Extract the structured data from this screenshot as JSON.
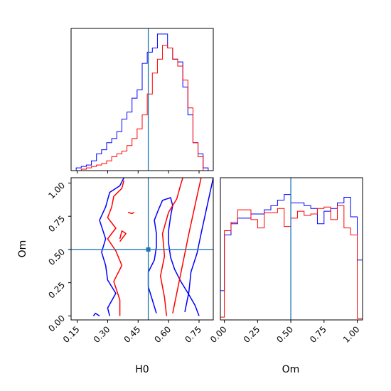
{
  "chart_data": {
    "type": "corner",
    "parameters": [
      "H0",
      "Om"
    ],
    "truth": {
      "H0": 0.5,
      "Om": 0.5
    },
    "truth_color": "#1f77b4",
    "series_colors": {
      "blue": "#0000ff",
      "red": "#ff0000"
    },
    "xlabels": {
      "H0": "H0",
      "Om": "Om"
    },
    "ylabel": "Om",
    "ticks": {
      "H0": [
        "0.15",
        "0.30",
        "0.45",
        "0.60",
        "0.75"
      ],
      "Om": [
        "0.00",
        "0.25",
        "0.50",
        "0.75",
        "1.00"
      ]
    },
    "ranges": {
      "H0": [
        0.12,
        0.82
      ],
      "Om": [
        -0.03,
        1.04
      ]
    },
    "histograms": {
      "H0": {
        "bin_edges": [
          0.12,
          0.145,
          0.17,
          0.195,
          0.22,
          0.245,
          0.27,
          0.295,
          0.32,
          0.345,
          0.37,
          0.395,
          0.42,
          0.445,
          0.47,
          0.495,
          0.52,
          0.545,
          0.57,
          0.595,
          0.62,
          0.645,
          0.67,
          0.695,
          0.72,
          0.745,
          0.77,
          0.795,
          0.82
        ],
        "blue": [
          0,
          0.02,
          0.03,
          0.04,
          0.07,
          0.12,
          0.15,
          0.2,
          0.23,
          0.28,
          0.37,
          0.42,
          0.52,
          0.58,
          0.77,
          0.85,
          0.88,
          0.98,
          0.98,
          0.88,
          0.8,
          0.78,
          0.6,
          0.4,
          0.2,
          0.12,
          0.02,
          0
        ],
        "red": [
          0,
          0,
          0.01,
          0.02,
          0.03,
          0.04,
          0.05,
          0.07,
          0.1,
          0.12,
          0.14,
          0.18,
          0.23,
          0.3,
          0.4,
          0.55,
          0.7,
          0.8,
          0.9,
          0.88,
          0.8,
          0.75,
          0.65,
          0.45,
          0.2,
          0.1,
          0,
          0
        ]
      },
      "Om": {
        "bin_edges": [
          -0.05,
          0.0,
          0.05,
          0.1,
          0.15,
          0.2,
          0.25,
          0.3,
          0.35,
          0.4,
          0.45,
          0.5,
          0.55,
          0.6,
          0.65,
          0.7,
          0.75,
          0.8,
          0.85,
          0.9,
          0.95,
          1.0,
          1.05
        ],
        "blue": [
          0.21,
          0.61,
          0.69,
          0.73,
          0.73,
          0.76,
          0.76,
          0.79,
          0.82,
          0.86,
          0.9,
          0.84,
          0.84,
          0.82,
          0.8,
          0.69,
          0.78,
          0.8,
          0.84,
          0.88,
          0.74,
          0.43
        ],
        "red": [
          0.02,
          0.64,
          0.7,
          0.79,
          0.79,
          0.72,
          0.66,
          0.77,
          0.77,
          0.8,
          0.67,
          0.73,
          0.78,
          0.75,
          0.76,
          0.8,
          0.81,
          0.72,
          0.82,
          0.66,
          0.61,
          0.01
        ]
      }
    },
    "contours": {
      "blue": [
        [
          [
            0.31,
            0.0
          ],
          [
            0.3,
            0.06
          ],
          [
            0.34,
            0.17
          ],
          [
            0.3,
            0.27
          ],
          [
            0.29,
            0.38
          ],
          [
            0.27,
            0.48
          ],
          [
            0.29,
            0.58
          ],
          [
            0.26,
            0.72
          ],
          [
            0.29,
            0.82
          ],
          [
            0.31,
            0.93
          ],
          [
            0.36,
            0.98
          ],
          [
            0.38,
            1.04
          ]
        ],
        [
          [
            0.54,
            0.02
          ],
          [
            0.52,
            0.12
          ],
          [
            0.5,
            0.22
          ],
          [
            0.5,
            0.33
          ],
          [
            0.53,
            0.42
          ],
          [
            0.54,
            0.52
          ],
          [
            0.54,
            0.62
          ],
          [
            0.53,
            0.72
          ],
          [
            0.55,
            0.8
          ],
          [
            0.57,
            0.87
          ],
          [
            0.61,
            0.89
          ],
          [
            0.62,
            0.83
          ],
          [
            0.61,
            0.75
          ],
          [
            0.6,
            0.64
          ],
          [
            0.6,
            0.55
          ],
          [
            0.61,
            0.44
          ],
          [
            0.63,
            0.35
          ],
          [
            0.66,
            0.26
          ],
          [
            0.7,
            0.16
          ],
          [
            0.73,
            0.08
          ],
          [
            0.75,
            0.0
          ]
        ],
        [
          [
            0.68,
            0.03
          ],
          [
            0.7,
            0.18
          ],
          [
            0.71,
            0.33
          ],
          [
            0.74,
            0.47
          ],
          [
            0.76,
            0.62
          ],
          [
            0.78,
            0.76
          ],
          [
            0.8,
            0.9
          ],
          [
            0.82,
            1.04
          ]
        ],
        [
          [
            0.23,
            0.0
          ],
          [
            0.24,
            0.02
          ],
          [
            0.26,
            0.0
          ]
        ]
      ],
      "red": [
        [
          [
            0.36,
            0.0
          ],
          [
            0.36,
            0.12
          ],
          [
            0.33,
            0.26
          ],
          [
            0.37,
            0.38
          ],
          [
            0.34,
            0.49
          ],
          [
            0.3,
            0.58
          ],
          [
            0.34,
            0.66
          ],
          [
            0.3,
            0.74
          ],
          [
            0.32,
            0.82
          ],
          [
            0.33,
            0.9
          ],
          [
            0.37,
            0.96
          ],
          [
            0.38,
            1.02
          ]
        ],
        [
          [
            0.59,
            0.0
          ],
          [
            0.58,
            0.14
          ],
          [
            0.56,
            0.3
          ],
          [
            0.58,
            0.45
          ],
          [
            0.57,
            0.62
          ],
          [
            0.6,
            0.78
          ],
          [
            0.64,
            0.88
          ],
          [
            0.66,
            0.99
          ],
          [
            0.67,
            1.04
          ]
        ],
        [
          [
            0.62,
            0.02
          ],
          [
            0.64,
            0.17
          ],
          [
            0.66,
            0.32
          ],
          [
            0.68,
            0.47
          ],
          [
            0.7,
            0.62
          ],
          [
            0.72,
            0.76
          ],
          [
            0.74,
            0.9
          ],
          [
            0.76,
            1.04
          ]
        ],
        [
          [
            0.36,
            0.56
          ],
          [
            0.39,
            0.62
          ],
          [
            0.37,
            0.64
          ],
          [
            0.36,
            0.58
          ]
        ],
        [
          [
            0.4,
            0.78
          ],
          [
            0.42,
            0.77
          ],
          [
            0.43,
            0.78
          ]
        ]
      ]
    }
  }
}
